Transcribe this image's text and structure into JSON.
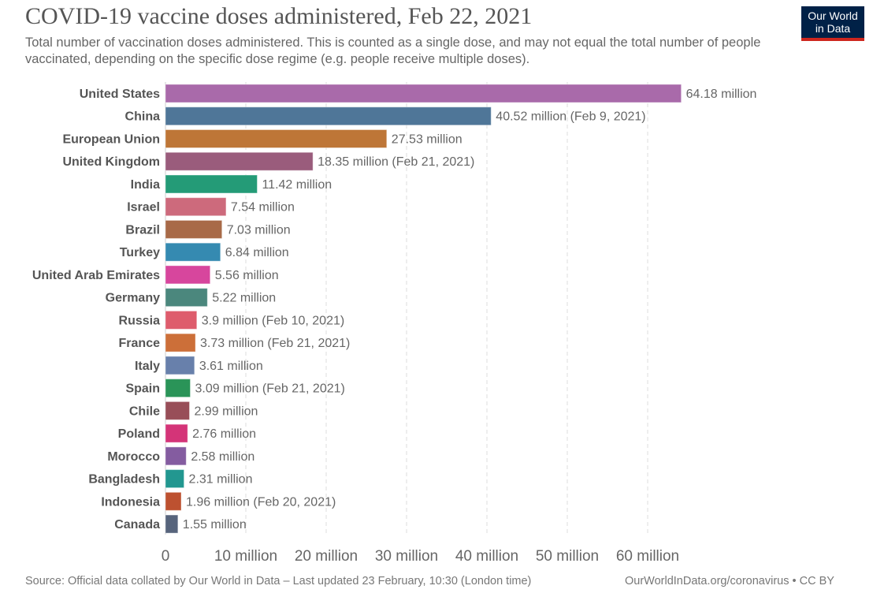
{
  "header": {
    "title": "COVID-19 vaccine doses administered, Feb 22, 2021",
    "subtitle": "Total number of vaccination doses administered. This is counted as a single dose, and may not equal the total number of people vaccinated, depending on the specific dose regime (e.g. people receive multiple doses).",
    "logo_line1": "Our World",
    "logo_line2": "in Data"
  },
  "footer": {
    "source": "Source: Official data collated by Our World in Data – Last updated 23 February, 10:30 (London time)",
    "credit": "OurWorldInData.org/coronavirus • CC BY"
  },
  "chart_data": {
    "type": "bar",
    "orientation": "horizontal",
    "unit": "million",
    "xlim": [
      0,
      65
    ],
    "grid": "vertical dashed",
    "ticks": [
      {
        "v": 0,
        "label": "0"
      },
      {
        "v": 10,
        "label": "10 million"
      },
      {
        "v": 20,
        "label": "20 million"
      },
      {
        "v": 30,
        "label": "30 million"
      },
      {
        "v": 40,
        "label": "40 million"
      },
      {
        "v": 50,
        "label": "50 million"
      },
      {
        "v": 60,
        "label": "60 million"
      }
    ],
    "categories": [
      "United States",
      "China",
      "European Union",
      "United Kingdom",
      "India",
      "Israel",
      "Brazil",
      "Turkey",
      "United Arab Emirates",
      "Germany",
      "Russia",
      "France",
      "Italy",
      "Spain",
      "Chile",
      "Poland",
      "Morocco",
      "Bangladesh",
      "Indonesia",
      "Canada"
    ],
    "values": [
      64.18,
      40.52,
      27.53,
      18.35,
      11.42,
      7.54,
      7.03,
      6.84,
      5.56,
      5.22,
      3.9,
      3.73,
      3.61,
      3.09,
      2.99,
      2.76,
      2.58,
      2.31,
      1.96,
      1.55
    ],
    "labels": [
      "64.18 million",
      "40.52 million (Feb 9, 2021)",
      "27.53 million",
      "18.35 million (Feb 21, 2021)",
      "11.42 million",
      "7.54 million",
      "7.03 million",
      "6.84 million",
      "5.56 million",
      "5.22 million",
      "3.9 million (Feb 10, 2021)",
      "3.73 million (Feb 21, 2021)",
      "3.61 million",
      "3.09 million (Feb 21, 2021)",
      "2.99 million",
      "2.76 million",
      "2.58 million",
      "2.31 million",
      "1.96 million (Feb 20, 2021)",
      "1.55 million"
    ],
    "colors": [
      "#a96aaa",
      "#4f7698",
      "#be7637",
      "#9a5c7c",
      "#249b77",
      "#cd6a7c",
      "#a86a48",
      "#358ab1",
      "#d7469d",
      "#4b877d",
      "#de5c6c",
      "#cc6f39",
      "#6880ab",
      "#2a9458",
      "#984e58",
      "#d43478",
      "#845ca0",
      "#229790",
      "#bd5130",
      "#57647c"
    ]
  }
}
